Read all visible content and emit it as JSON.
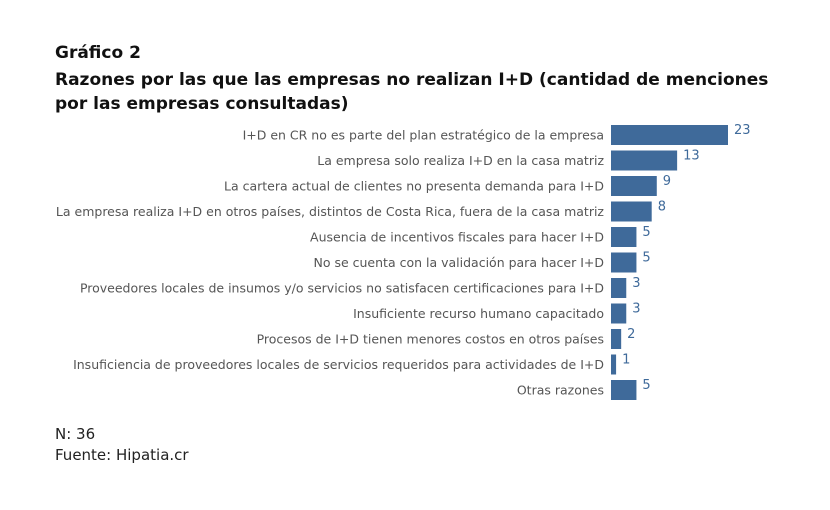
{
  "chart_data": {
    "type": "bar",
    "orientation": "horizontal",
    "label": "Gráfico 2",
    "title": "Razones por las que las empresas no realizan I+D (cantidad de menciones por las empresas consultadas)",
    "categories": [
      "I+D en CR no es parte del plan estratégico de la empresa",
      "La empresa solo realiza I+D en la casa matriz",
      "La cartera actual de clientes no presenta demanda para I+D",
      "La empresa realiza I+D en otros países, distintos de Costa Rica, fuera de la casa matriz",
      "Ausencia de incentivos fiscales para hacer I+D",
      "No se cuenta con la validación para hacer I+D",
      "Proveedores locales de insumos y/o servicios no satisfacen certificaciones para I+D",
      "Insuficiente recurso humano capacitado",
      "Procesos de I+D tienen menores costos en otros países",
      "Insuficiencia de proveedores locales de servicios requeridos para actividades de I+D",
      "Otras razones"
    ],
    "values": [
      23,
      13,
      9,
      8,
      5,
      5,
      3,
      3,
      2,
      1,
      5
    ],
    "xlim": [
      0,
      23
    ],
    "grid": false,
    "bar_color": "#3f6a9a",
    "value_label_color": "#3f6a9a",
    "category_label_color": "#555555"
  },
  "notes": {
    "n": "N: 36",
    "source": "Fuente: Hipatia.cr"
  }
}
